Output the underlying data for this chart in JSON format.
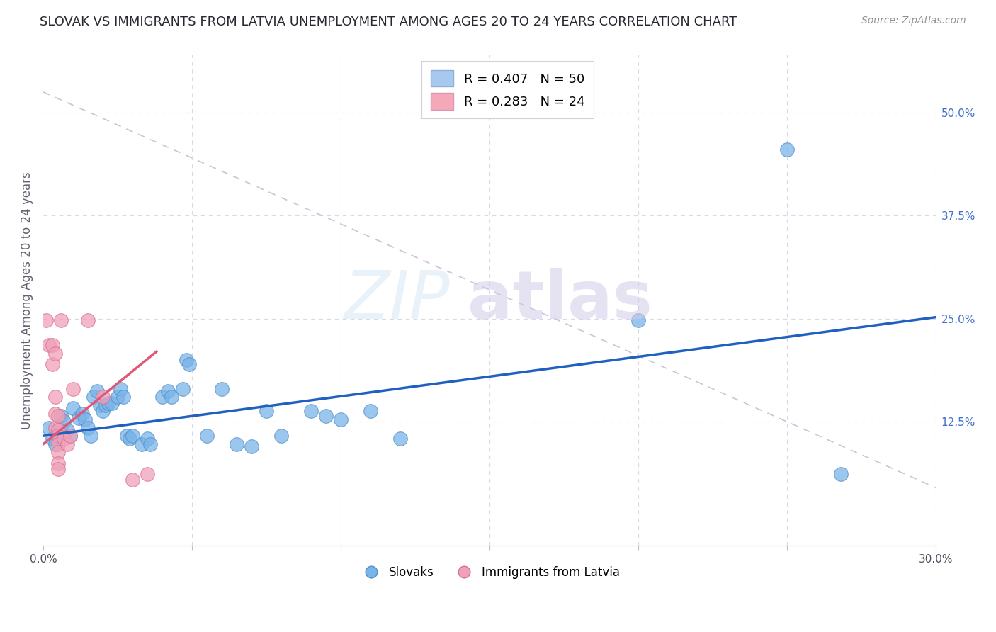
{
  "title": "SLOVAK VS IMMIGRANTS FROM LATVIA UNEMPLOYMENT AMONG AGES 20 TO 24 YEARS CORRELATION CHART",
  "source": "Source: ZipAtlas.com",
  "ylabel": "Unemployment Among Ages 20 to 24 years",
  "xlim": [
    0.0,
    0.3
  ],
  "ylim": [
    -0.025,
    0.57
  ],
  "slovaks_color": "#7ab4e8",
  "slovaks_edge": "#5090c8",
  "latvia_color": "#f0a0b8",
  "latvia_edge": "#d87090",
  "blue_line_color": "#2060c0",
  "pink_line_color": "#e05878",
  "diag_line_color": "#c0c0d0",
  "grid_color": "#d8d8e8",
  "legend1_label": "R = 0.407   N = 50",
  "legend2_label": "R = 0.283   N = 24",
  "legend1_face": "#a8c8f0",
  "legend2_face": "#f4a8b8",
  "slovaks_scatter": [
    [
      0.002,
      0.118
    ],
    [
      0.003,
      0.105
    ],
    [
      0.004,
      0.098
    ],
    [
      0.005,
      0.112
    ],
    [
      0.006,
      0.132
    ],
    [
      0.007,
      0.125
    ],
    [
      0.008,
      0.115
    ],
    [
      0.009,
      0.108
    ],
    [
      0.01,
      0.142
    ],
    [
      0.012,
      0.13
    ],
    [
      0.013,
      0.135
    ],
    [
      0.014,
      0.128
    ],
    [
      0.015,
      0.118
    ],
    [
      0.016,
      0.108
    ],
    [
      0.017,
      0.155
    ],
    [
      0.018,
      0.162
    ],
    [
      0.019,
      0.145
    ],
    [
      0.02,
      0.138
    ],
    [
      0.021,
      0.145
    ],
    [
      0.022,
      0.148
    ],
    [
      0.023,
      0.148
    ],
    [
      0.025,
      0.155
    ],
    [
      0.026,
      0.165
    ],
    [
      0.027,
      0.155
    ],
    [
      0.028,
      0.108
    ],
    [
      0.029,
      0.105
    ],
    [
      0.03,
      0.108
    ],
    [
      0.033,
      0.098
    ],
    [
      0.035,
      0.105
    ],
    [
      0.036,
      0.098
    ],
    [
      0.04,
      0.155
    ],
    [
      0.042,
      0.162
    ],
    [
      0.043,
      0.155
    ],
    [
      0.047,
      0.165
    ],
    [
      0.048,
      0.2
    ],
    [
      0.049,
      0.195
    ],
    [
      0.055,
      0.108
    ],
    [
      0.06,
      0.165
    ],
    [
      0.065,
      0.098
    ],
    [
      0.07,
      0.095
    ],
    [
      0.075,
      0.138
    ],
    [
      0.08,
      0.108
    ],
    [
      0.09,
      0.138
    ],
    [
      0.095,
      0.132
    ],
    [
      0.1,
      0.128
    ],
    [
      0.11,
      0.138
    ],
    [
      0.12,
      0.105
    ],
    [
      0.2,
      0.248
    ],
    [
      0.25,
      0.455
    ],
    [
      0.268,
      0.062
    ]
  ],
  "latvia_scatter": [
    [
      0.001,
      0.248
    ],
    [
      0.002,
      0.218
    ],
    [
      0.003,
      0.218
    ],
    [
      0.003,
      0.195
    ],
    [
      0.004,
      0.208
    ],
    [
      0.004,
      0.155
    ],
    [
      0.004,
      0.135
    ],
    [
      0.004,
      0.118
    ],
    [
      0.005,
      0.132
    ],
    [
      0.005,
      0.115
    ],
    [
      0.005,
      0.108
    ],
    [
      0.005,
      0.098
    ],
    [
      0.005,
      0.088
    ],
    [
      0.005,
      0.075
    ],
    [
      0.005,
      0.068
    ],
    [
      0.006,
      0.248
    ],
    [
      0.007,
      0.105
    ],
    [
      0.008,
      0.098
    ],
    [
      0.009,
      0.108
    ],
    [
      0.01,
      0.165
    ],
    [
      0.015,
      0.248
    ],
    [
      0.02,
      0.155
    ],
    [
      0.03,
      0.055
    ],
    [
      0.035,
      0.062
    ]
  ],
  "blue_line": [
    [
      0.0,
      0.108
    ],
    [
      0.3,
      0.252
    ]
  ],
  "pink_line": [
    [
      0.0,
      0.098
    ],
    [
      0.038,
      0.21
    ]
  ],
  "diag_line": [
    [
      0.0,
      0.525
    ],
    [
      0.3,
      0.045
    ]
  ],
  "ytick_vals": [
    0.125,
    0.25,
    0.375,
    0.5
  ],
  "ytick_labels": [
    "12.5%",
    "25.0%",
    "37.5%",
    "50.0%"
  ],
  "xtick_vals": [
    0.0,
    0.05,
    0.1,
    0.15,
    0.2,
    0.25,
    0.3
  ],
  "xtick_labels": [
    "0.0%",
    "",
    "",
    "",
    "",
    "",
    "30.0%"
  ]
}
